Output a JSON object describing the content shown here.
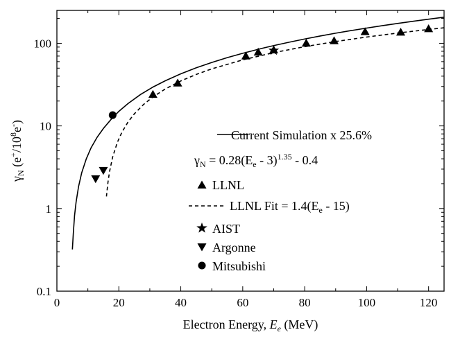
{
  "chart_data": {
    "type": "scatter",
    "xlabel": "Electron Energy, E_e (MeV)",
    "xlabel_parts": {
      "prefix": "Electron Energy, ",
      "var": "E",
      "sub": "e",
      "suffix": " (MeV)"
    },
    "ylabel_parts": {
      "gamma": "γ",
      "sub": "N",
      "open": " (e",
      "sup1": "+",
      "mid": "/10",
      "sup2": "8",
      "tail": "e",
      "sup3": "-",
      "close": ")"
    },
    "xlim": [
      0,
      125
    ],
    "ylim": [
      0.1,
      250
    ],
    "yscale": "log",
    "grid": false,
    "legend_placement": "center-right",
    "x_ticks": [
      0,
      20,
      40,
      60,
      80,
      100,
      120
    ],
    "x_tick_labels": [
      "0",
      "20",
      "40",
      "60",
      "80",
      "100",
      "120"
    ],
    "y_ticks": [
      0.1,
      1,
      10,
      100
    ],
    "y_tick_labels": [
      "0.1",
      "1",
      "10",
      "100"
    ],
    "series": [
      {
        "name": "Current Simulation x 25.6%",
        "kind": "line",
        "style": "solid",
        "equation": {
          "lhs": "γ",
          "lhs_sub": "N",
          "body": " = 0.28(E",
          "sub": "e",
          "mid": " - 3)",
          "sup": "1.35",
          "tail": " - 0.4"
        },
        "x": [
          5,
          5.3,
          5.7,
          6.2,
          7,
          8,
          9.5,
          11,
          13,
          15,
          17.5,
          20,
          23,
          27,
          31,
          35,
          40,
          45,
          50,
          55,
          60,
          65,
          70,
          75,
          80,
          85,
          90,
          95,
          100,
          105,
          110,
          115,
          120,
          125
        ],
        "y": [
          0.32,
          0.5,
          0.82,
          1.2,
          1.85,
          2.7,
          4.0,
          5.4,
          7.3,
          9.3,
          12.0,
          15.0,
          18.7,
          24.0,
          29.5,
          35.2,
          42.7,
          50.5,
          58.6,
          67.0,
          75.7,
          84.6,
          93.8,
          103.1,
          112.7,
          122.4,
          132.4,
          142.5,
          152.8,
          163.2,
          173.9,
          184.6,
          195.6,
          206.7
        ]
      },
      {
        "name": "LLNL",
        "kind": "markers",
        "marker": "triangle-up",
        "x": [
          31,
          39,
          61,
          65,
          70,
          80.5,
          89.5,
          99.5,
          111,
          120
        ],
        "y": [
          24,
          33,
          70,
          78,
          83,
          100,
          107,
          138,
          136,
          150
        ]
      },
      {
        "name": "LLNL Fit = 1.4(E_e - 15)",
        "legend_parts": {
          "body": "LLNL Fit = 1.4(E",
          "sub": "e",
          "tail": " - 15)"
        },
        "kind": "line",
        "style": "dashed",
        "x": [
          16,
          16.5,
          17,
          18,
          19.5,
          21,
          23,
          25,
          28,
          31,
          35,
          40,
          45,
          50,
          60,
          70,
          80,
          90,
          100,
          110,
          120,
          125
        ],
        "y": [
          1.4,
          2.1,
          2.8,
          4.2,
          6.3,
          8.4,
          11.2,
          14.0,
          18.2,
          22.4,
          28.0,
          35.0,
          42.0,
          49.0,
          63.0,
          77.0,
          91.0,
          105.0,
          119.0,
          133.0,
          147.0,
          154.0
        ]
      },
      {
        "name": "AIST",
        "kind": "markers",
        "marker": "star",
        "x": [
          70
        ],
        "y": [
          82
        ]
      },
      {
        "name": "Argonne",
        "kind": "markers",
        "marker": "triangle-down",
        "x": [
          12.5,
          15
        ],
        "y": [
          2.3,
          2.9
        ]
      },
      {
        "name": "Mitsubishi",
        "kind": "markers",
        "marker": "circle",
        "x": [
          18
        ],
        "y": [
          13.5
        ]
      }
    ]
  }
}
